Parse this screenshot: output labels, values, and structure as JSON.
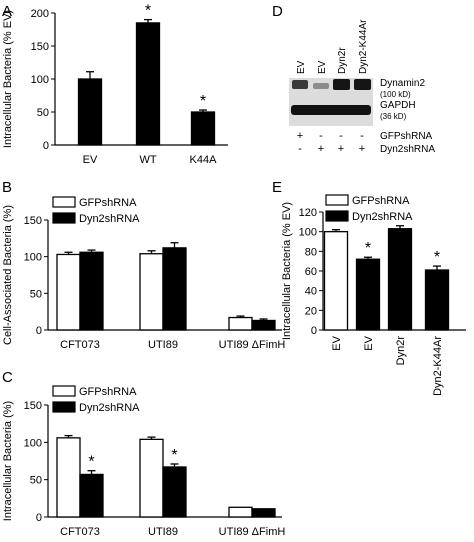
{
  "colors": {
    "filled": "#000000",
    "open": "#ffffff",
    "stroke": "#000000"
  },
  "chart_data": [
    {
      "panel": "A",
      "type": "bar",
      "ylabel": "Intracellular Bacteria (% EV)",
      "yticks": [
        0,
        50,
        100,
        150,
        200
      ],
      "ylim": [
        0,
        200
      ],
      "categories": [
        "EV",
        "WT",
        "K44A"
      ],
      "values": [
        100,
        185,
        50
      ],
      "errors": [
        11,
        5,
        3
      ],
      "fills": [
        "filled",
        "filled",
        "filled"
      ],
      "stars": [
        "",
        "*",
        "*"
      ]
    },
    {
      "panel": "B",
      "type": "bar",
      "ylabel": "Cell-Associated Bacteria (%)",
      "yticks": [
        0,
        50,
        100,
        150
      ],
      "ylim": [
        0,
        150
      ],
      "categories": [
        "CFT073",
        "UTI89",
        "UTI89 ΔFimH"
      ],
      "legend": [
        "GFPshRNA",
        "Dyn2shRNA"
      ],
      "series": [
        {
          "name": "GFPshRNA",
          "fill": "open",
          "values": [
            103,
            104,
            17
          ],
          "errors": [
            3,
            4,
            2
          ]
        },
        {
          "name": "Dyn2shRNA",
          "fill": "filled",
          "values": [
            106,
            112,
            13
          ],
          "errors": [
            3,
            7,
            2
          ]
        }
      ],
      "stars": [
        [
          "",
          "",
          ""
        ],
        [
          "",
          "",
          ""
        ]
      ]
    },
    {
      "panel": "C",
      "type": "bar",
      "ylabel": "Intracellular Bacteria (%)",
      "yticks": [
        0,
        50,
        100,
        150
      ],
      "ylim": [
        0,
        150
      ],
      "categories": [
        "CFT073",
        "UTI89",
        "UTI89 ΔFimH"
      ],
      "legend": [
        "GFPshRNA",
        "Dyn2shRNA"
      ],
      "series": [
        {
          "name": "GFPshRNA",
          "fill": "open",
          "values": [
            106,
            104,
            13
          ],
          "errors": [
            3,
            3,
            0
          ]
        },
        {
          "name": "Dyn2shRNA",
          "fill": "filled",
          "values": [
            57,
            67,
            11
          ],
          "errors": [
            5,
            4,
            0
          ]
        }
      ],
      "stars": [
        [
          "",
          "",
          ""
        ],
        [
          "*",
          "*",
          ""
        ]
      ]
    },
    {
      "panel": "E",
      "type": "bar",
      "ylabel": "Intracellular Bacteria (% EV)",
      "yticks": [
        0,
        20,
        40,
        60,
        80,
        100,
        120
      ],
      "ylim": [
        0,
        120
      ],
      "categories": [
        "EV",
        "EV",
        "Dyn2r",
        "Dyn2-K44Ar"
      ],
      "legend": [
        "GFPshRNA",
        "Dyn2shRNA"
      ],
      "values": [
        100,
        72,
        103,
        61
      ],
      "errors": [
        2,
        2,
        3,
        4
      ],
      "fills": [
        "open",
        "filled",
        "filled",
        "filled"
      ],
      "stars": [
        "",
        "*",
        "",
        "*"
      ]
    }
  ],
  "blot": {
    "panel": "D",
    "lanes": [
      "EV",
      "EV",
      "Dyn2r",
      "Dyn2-K44Ar"
    ],
    "band_labels": {
      "dynamin": "Dynamin2",
      "dynamin_kd": "(100 kD)",
      "gapdh": "GAPDH",
      "gapdh_kd": "(36 kD)"
    },
    "rows": [
      {
        "label": "GFPshRNA",
        "signs": [
          "+",
          "-",
          "-",
          "-"
        ]
      },
      {
        "label": "Dyn2shRNA",
        "signs": [
          "-",
          "+",
          "+",
          "+"
        ]
      }
    ]
  }
}
